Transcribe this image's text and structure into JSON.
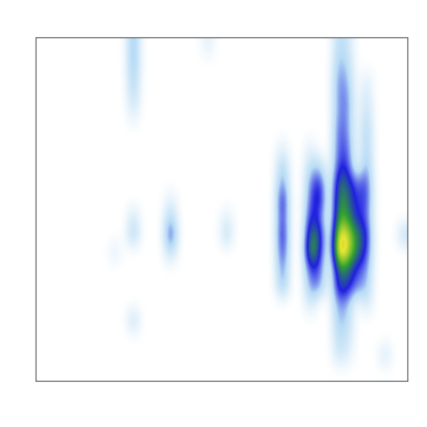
{
  "chart_data": {
    "type": "heatmap",
    "tick_labels": false,
    "colors": [
      "#ffffff",
      "#b8dcf5",
      "#2020e0",
      "#30a030",
      "#e8e830",
      "#e03020"
    ],
    "value_range": [
      0,
      100
    ],
    "cells": [
      [
        0,
        0,
        0,
        0,
        0,
        0,
        0,
        0,
        0,
        0,
        30,
        0,
        0,
        0,
        0,
        0,
        0,
        0,
        10,
        0,
        0,
        0,
        0,
        0,
        0,
        0,
        0,
        0,
        0,
        0,
        0,
        0,
        20,
        15,
        0,
        0,
        0,
        0,
        0,
        0
      ],
      [
        0,
        0,
        0,
        0,
        0,
        0,
        0,
        0,
        0,
        0,
        30,
        0,
        0,
        0,
        0,
        0,
        0,
        0,
        0,
        0,
        0,
        0,
        0,
        0,
        0,
        0,
        0,
        0,
        0,
        0,
        0,
        0,
        25,
        20,
        0,
        0,
        0,
        0,
        0,
        0
      ],
      [
        0,
        0,
        0,
        0,
        0,
        0,
        0,
        0,
        0,
        0,
        25,
        0,
        0,
        0,
        0,
        0,
        0,
        0,
        0,
        0,
        0,
        0,
        0,
        0,
        0,
        0,
        0,
        0,
        0,
        0,
        0,
        0,
        30,
        25,
        0,
        10,
        0,
        0,
        0,
        0
      ],
      [
        0,
        0,
        0,
        0,
        0,
        0,
        0,
        0,
        0,
        0,
        20,
        0,
        0,
        0,
        0,
        0,
        0,
        0,
        0,
        0,
        0,
        0,
        0,
        0,
        0,
        0,
        0,
        0,
        0,
        0,
        0,
        0,
        30,
        30,
        0,
        15,
        0,
        0,
        0,
        0
      ],
      [
        0,
        0,
        0,
        0,
        0,
        0,
        0,
        0,
        0,
        0,
        10,
        0,
        0,
        0,
        0,
        0,
        0,
        0,
        0,
        0,
        0,
        0,
        0,
        0,
        0,
        0,
        0,
        0,
        0,
        0,
        0,
        0,
        30,
        30,
        0,
        20,
        0,
        0,
        0,
        0
      ],
      [
        0,
        0,
        0,
        0,
        0,
        0,
        0,
        0,
        0,
        0,
        0,
        0,
        0,
        0,
        0,
        0,
        0,
        0,
        0,
        0,
        0,
        0,
        0,
        0,
        0,
        0,
        0,
        0,
        0,
        0,
        0,
        0,
        35,
        30,
        0,
        25,
        0,
        0,
        0,
        0
      ],
      [
        0,
        0,
        0,
        0,
        0,
        0,
        0,
        0,
        0,
        0,
        0,
        0,
        0,
        0,
        0,
        0,
        0,
        0,
        0,
        0,
        0,
        0,
        0,
        0,
        0,
        0,
        10,
        0,
        0,
        10,
        0,
        0,
        35,
        35,
        0,
        25,
        0,
        0,
        0,
        0
      ],
      [
        0,
        0,
        0,
        0,
        0,
        0,
        0,
        0,
        0,
        0,
        0,
        0,
        0,
        0,
        0,
        0,
        0,
        0,
        0,
        0,
        0,
        0,
        0,
        0,
        0,
        0,
        25,
        0,
        0,
        20,
        20,
        0,
        40,
        40,
        0,
        30,
        0,
        0,
        0,
        0
      ],
      [
        0,
        0,
        0,
        0,
        0,
        0,
        0,
        0,
        0,
        0,
        0,
        0,
        0,
        0,
        0,
        0,
        0,
        0,
        0,
        0,
        0,
        0,
        0,
        0,
        0,
        0,
        35,
        0,
        0,
        30,
        45,
        0,
        55,
        50,
        30,
        40,
        0,
        0,
        0,
        0
      ],
      [
        0,
        0,
        0,
        0,
        0,
        0,
        0,
        0,
        0,
        0,
        0,
        0,
        0,
        0,
        10,
        0,
        0,
        0,
        0,
        0,
        0,
        0,
        0,
        0,
        0,
        0,
        50,
        0,
        0,
        35,
        50,
        0,
        60,
        55,
        35,
        40,
        0,
        0,
        0,
        0
      ],
      [
        0,
        0,
        0,
        0,
        0,
        0,
        0,
        0,
        0,
        0,
        15,
        0,
        0,
        0,
        25,
        0,
        0,
        0,
        0,
        0,
        10,
        0,
        0,
        0,
        0,
        0,
        45,
        0,
        0,
        45,
        35,
        0,
        65,
        60,
        40,
        35,
        0,
        0,
        0,
        0
      ],
      [
        0,
        0,
        0,
        0,
        0,
        0,
        0,
        0,
        0,
        0,
        25,
        0,
        0,
        0,
        45,
        0,
        0,
        0,
        0,
        0,
        20,
        0,
        0,
        0,
        0,
        0,
        50,
        0,
        0,
        60,
        50,
        0,
        85,
        80,
        55,
        45,
        0,
        0,
        0,
        20
      ],
      [
        0,
        0,
        0,
        0,
        0,
        0,
        0,
        0,
        10,
        0,
        0,
        0,
        0,
        0,
        20,
        0,
        0,
        0,
        0,
        0,
        0,
        0,
        0,
        0,
        0,
        0,
        45,
        0,
        0,
        70,
        45,
        0,
        95,
        80,
        55,
        40,
        0,
        0,
        0,
        0
      ],
      [
        0,
        0,
        0,
        0,
        0,
        0,
        0,
        0,
        0,
        0,
        0,
        0,
        0,
        0,
        0,
        0,
        0,
        0,
        0,
        0,
        0,
        0,
        0,
        0,
        0,
        0,
        35,
        0,
        0,
        40,
        35,
        0,
        55,
        55,
        35,
        30,
        0,
        0,
        0,
        0
      ],
      [
        0,
        0,
        0,
        0,
        0,
        0,
        0,
        0,
        0,
        0,
        0,
        0,
        0,
        0,
        0,
        0,
        0,
        0,
        0,
        0,
        0,
        0,
        0,
        0,
        0,
        0,
        30,
        0,
        0,
        30,
        30,
        0,
        50,
        45,
        30,
        25,
        0,
        0,
        0,
        0
      ],
      [
        0,
        0,
        0,
        0,
        0,
        0,
        0,
        0,
        0,
        0,
        0,
        0,
        0,
        0,
        0,
        0,
        0,
        0,
        0,
        0,
        0,
        0,
        0,
        0,
        0,
        0,
        0,
        0,
        0,
        15,
        0,
        0,
        30,
        25,
        0,
        15,
        0,
        0,
        0,
        0
      ],
      [
        0,
        0,
        0,
        0,
        0,
        0,
        0,
        0,
        0,
        0,
        20,
        0,
        0,
        0,
        0,
        0,
        0,
        0,
        0,
        0,
        0,
        0,
        0,
        0,
        0,
        0,
        0,
        0,
        0,
        0,
        0,
        0,
        25,
        20,
        0,
        0,
        0,
        0,
        0,
        0
      ],
      [
        0,
        0,
        0,
        0,
        0,
        0,
        0,
        0,
        0,
        0,
        0,
        0,
        0,
        0,
        0,
        0,
        0,
        0,
        0,
        0,
        0,
        0,
        0,
        0,
        0,
        0,
        0,
        0,
        0,
        0,
        0,
        0,
        20,
        15,
        0,
        0,
        0,
        0,
        0,
        0
      ],
      [
        0,
        0,
        0,
        0,
        0,
        0,
        0,
        0,
        0,
        0,
        0,
        0,
        0,
        0,
        0,
        0,
        0,
        0,
        0,
        0,
        0,
        0,
        0,
        0,
        0,
        0,
        0,
        0,
        0,
        0,
        0,
        0,
        15,
        10,
        0,
        0,
        0,
        15,
        0,
        0
      ],
      [
        0,
        0,
        0,
        0,
        0,
        0,
        0,
        0,
        0,
        0,
        0,
        0,
        0,
        0,
        0,
        0,
        0,
        0,
        0,
        0,
        0,
        0,
        0,
        0,
        0,
        0,
        0,
        0,
        0,
        0,
        0,
        0,
        0,
        0,
        0,
        0,
        0,
        0,
        0,
        0
      ]
    ]
  }
}
